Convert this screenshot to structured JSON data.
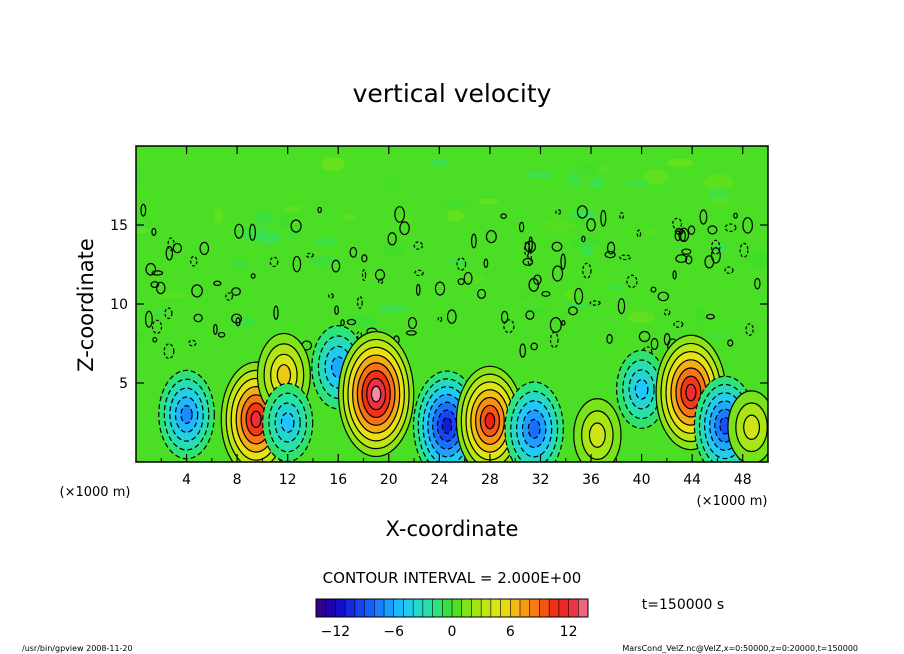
{
  "chart_data": {
    "type": "heatmap",
    "title": "vertical velocity",
    "xlabel": "X-coordinate",
    "ylabel": "Z-coordinate",
    "x_unit": "(×1000 m)",
    "y_unit": "(×1000 m)",
    "xlim": [
      0,
      50
    ],
    "ylim": [
      0,
      20
    ],
    "x_ticks": [
      "4",
      "8",
      "12",
      "16",
      "20",
      "24",
      "28",
      "32",
      "36",
      "40",
      "44",
      "48"
    ],
    "y_ticks": [
      "5",
      "10",
      "15"
    ],
    "contour_interval_text": "CONTOUR INTERVAL = 2.000E+00",
    "time_label": "t=150000  s",
    "colorbar": {
      "min": -14,
      "max": 14,
      "tick_labels": [
        "−12",
        "−6",
        "0",
        "6",
        "12"
      ],
      "tick_values": [
        -12,
        -6,
        0,
        6,
        12
      ]
    },
    "features": [
      {
        "x": 4,
        "z": 3.0,
        "value": -7
      },
      {
        "x": 9.5,
        "z": 2.7,
        "value": 12
      },
      {
        "x": 11.7,
        "z": 5.5,
        "value": 6
      },
      {
        "x": 12.0,
        "z": 2.5,
        "value": -5
      },
      {
        "x": 16,
        "z": 6.0,
        "value": -6
      },
      {
        "x": 19,
        "z": 4.3,
        "value": 14
      },
      {
        "x": 24.6,
        "z": 2.3,
        "value": -11
      },
      {
        "x": 28,
        "z": 2.6,
        "value": 11
      },
      {
        "x": 31.5,
        "z": 2.1,
        "value": -8
      },
      {
        "x": 36.5,
        "z": 1.7,
        "value": 4
      },
      {
        "x": 40,
        "z": 4.6,
        "value": -5
      },
      {
        "x": 43.9,
        "z": 4.4,
        "value": 12
      },
      {
        "x": 46.6,
        "z": 2.3,
        "value": -9
      },
      {
        "x": 48.7,
        "z": 2.2,
        "value": 4
      }
    ]
  },
  "footer": {
    "program": "/usr/bin/gpview   2008-11-20",
    "source": "MarsCond_VelZ.nc@VelZ,x=0:50000,z=0:20000,t=150000"
  }
}
